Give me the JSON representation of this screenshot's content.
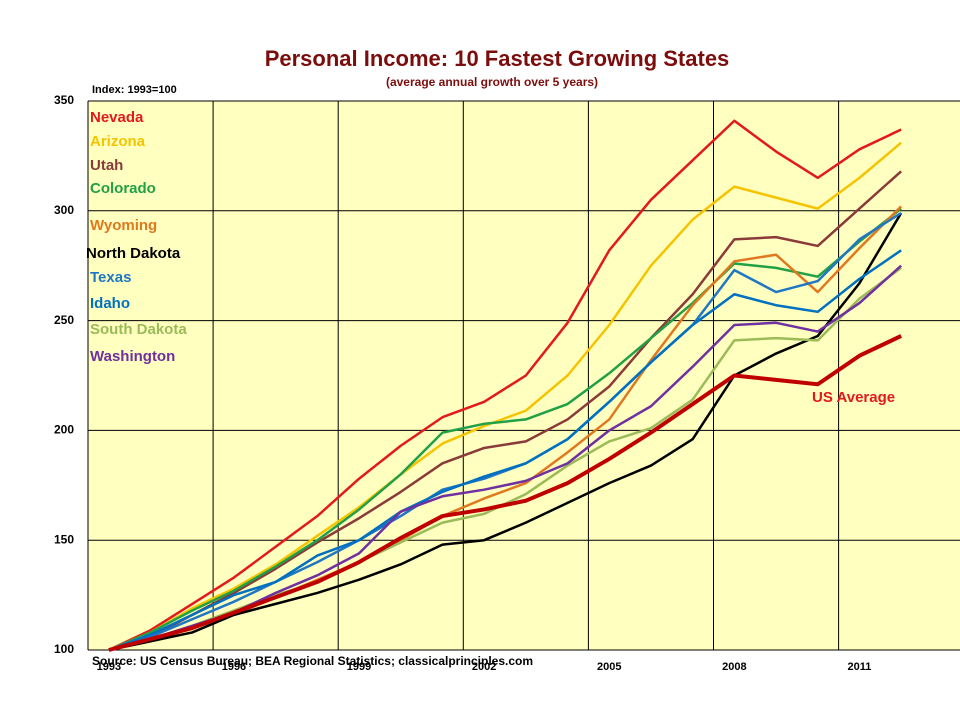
{
  "chart_data": {
    "type": "line",
    "title": "Personal Income: 10 Fastest Growing States",
    "subtitle": "(average annual growth over 5 years)",
    "y_axis_label": "Index: 1993=100",
    "source": "Source: US Census Bureau; BEA Regional Statistics; classicalprinciples.com",
    "annotation": "US Average",
    "categories": [
      "1993",
      null,
      null,
      "1996",
      null,
      null,
      "1999",
      null,
      null,
      "2002",
      null,
      null,
      "2005",
      null,
      null,
      "2008",
      null,
      null,
      "2011",
      null,
      null
    ],
    "ylim": [
      100,
      350
    ],
    "yticks": [
      100,
      150,
      200,
      250,
      300,
      350
    ],
    "grid": true,
    "series": [
      {
        "name": "Nevada",
        "color": "#e31a1c",
        "values": [
          100,
          109,
          121,
          133,
          147,
          161,
          178,
          193,
          206,
          213,
          225,
          249,
          282,
          305,
          323,
          341,
          327,
          315,
          328,
          337,
          null
        ]
      },
      {
        "name": "Arizona",
        "color": "#f5c400",
        "values": [
          100,
          108,
          119,
          128,
          139,
          152,
          165,
          180,
          194,
          202,
          209,
          225,
          248,
          275,
          296,
          311,
          306,
          301,
          315,
          331,
          null
        ]
      },
      {
        "name": "Utah",
        "color": "#8b3a3a",
        "values": [
          100,
          106,
          116,
          126,
          137,
          149,
          160,
          172,
          185,
          192,
          195,
          205,
          220,
          242,
          262,
          287,
          288,
          284,
          301,
          318,
          null
        ]
      },
      {
        "name": "Colorado",
        "color": "#22a045",
        "values": [
          100,
          108,
          118,
          127,
          138,
          150,
          164,
          180,
          199,
          203,
          205,
          212,
          226,
          242,
          258,
          276,
          274,
          270,
          286,
          301,
          null
        ]
      },
      {
        "name": "Wyoming",
        "color": "#e07820",
        "values": [
          100,
          104,
          110,
          116,
          124,
          132,
          140,
          150,
          161,
          169,
          176,
          190,
          205,
          232,
          257,
          277,
          280,
          263,
          283,
          302,
          null
        ]
      },
      {
        "name": "North Dakota",
        "color": "#000000",
        "values": [
          100,
          104,
          108,
          116,
          121,
          126,
          132,
          139,
          148,
          150,
          158,
          167,
          176,
          184,
          196,
          225,
          235,
          243,
          267,
          299,
          null
        ]
      },
      {
        "name": "Texas",
        "color": "#1f77c4",
        "values": [
          100,
          106,
          114,
          122,
          131,
          140,
          150,
          161,
          173,
          178,
          185,
          196,
          213,
          231,
          248,
          273,
          263,
          268,
          287,
          299,
          null
        ]
      },
      {
        "name": "Idaho",
        "color": "#0070c0",
        "values": [
          100,
          107,
          116,
          125,
          131,
          143,
          150,
          163,
          172,
          179,
          185,
          196,
          213,
          231,
          248,
          262,
          257,
          254,
          269,
          282,
          null
        ]
      },
      {
        "name": "South Dakota",
        "color": "#9bbb59",
        "values": [
          100,
          105,
          111,
          118,
          125,
          131,
          140,
          149,
          158,
          162,
          171,
          184,
          195,
          201,
          214,
          241,
          242,
          241,
          260,
          274,
          null
        ]
      },
      {
        "name": "Washington",
        "color": "#7030a0",
        "values": [
          100,
          105,
          111,
          117,
          126,
          134,
          144,
          163,
          170,
          173,
          177,
          185,
          200,
          211,
          229,
          248,
          249,
          245,
          258,
          275,
          null
        ]
      },
      {
        "name": "US Average",
        "color": "#c00000",
        "values": [
          100,
          105,
          110,
          117,
          124,
          131,
          140,
          151,
          161,
          164,
          168,
          176,
          187,
          199,
          212,
          225,
          223,
          221,
          234,
          243,
          null
        ]
      }
    ]
  }
}
